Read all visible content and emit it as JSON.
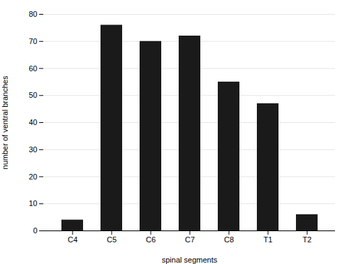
{
  "chart_data": {
    "type": "bar",
    "categories": [
      "C4",
      "C5",
      "C6",
      "C7",
      "C8",
      "T1",
      "T2"
    ],
    "values": [
      4,
      76,
      70,
      72,
      55,
      47,
      6
    ],
    "color": "#1a1a1a",
    "xlabel": "spinal segments",
    "ylabel": "number of ventral branches",
    "ylim": [
      0,
      80
    ],
    "yticks": [
      0,
      10,
      20,
      30,
      40,
      50,
      60,
      70,
      80
    ],
    "grid": true
  }
}
